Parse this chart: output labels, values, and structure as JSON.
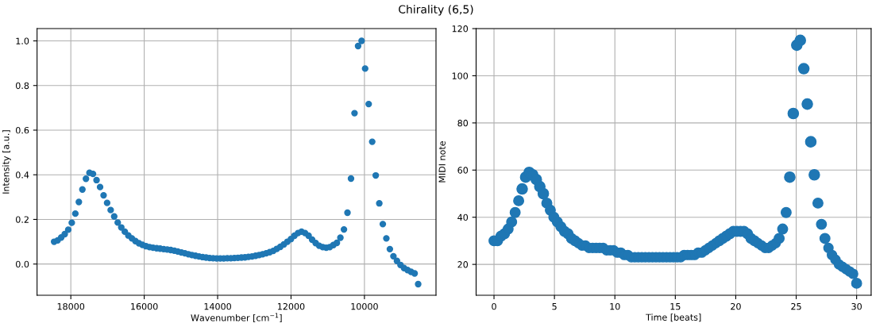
{
  "chart_data": [
    {
      "type": "scatter",
      "title": "Chirality (6,5)",
      "xlabel": "Wavenumber [cm$^{−1}$]",
      "ylabel": "Intensity [a.u.]",
      "grid": true,
      "marker": "circle",
      "xlim": [
        18920,
        8050
      ],
      "xticks": [
        18000,
        16000,
        14000,
        12000,
        10000
      ],
      "ylim": [
        -0.14,
        1.055
      ],
      "yticks": [
        {
          "value": 0,
          "label": "0.0"
        },
        {
          "value": 0.2,
          "label": "0.2"
        },
        {
          "value": 0.4,
          "label": "0.4"
        },
        {
          "value": 0.6,
          "label": "0.6"
        },
        {
          "value": 0.8,
          "label": "0.8"
        },
        {
          "value": 1,
          "label": "1.0"
        }
      ],
      "series": [
        {
          "color": "#1f77b4",
          "x": [
            18455,
            18359,
            18262,
            18166,
            18070,
            17974,
            17877,
            17781,
            17685,
            17588,
            17492,
            17396,
            17299,
            17203,
            17107,
            17011,
            16914,
            16818,
            16722,
            16625,
            16529,
            16433,
            16336,
            16240,
            16144,
            16048,
            15951,
            15855,
            15759,
            15662,
            15566,
            15470,
            15373,
            15277,
            15181,
            15085,
            14988,
            14892,
            14796,
            14699,
            14603,
            14507,
            14410,
            14314,
            14218,
            14122,
            14025,
            13929,
            13833,
            13736,
            13640,
            13544,
            13447,
            13351,
            13255,
            13159,
            13062,
            12966,
            12870,
            12773,
            12677,
            12581,
            12484,
            12388,
            12292,
            12196,
            12099,
            12003,
            11907,
            11810,
            11714,
            11618,
            11521,
            11425,
            11329,
            11233,
            11136,
            11040,
            10944,
            10847,
            10751,
            10655,
            10558,
            10462,
            10366,
            10270,
            10173,
            10077,
            9981,
            9884,
            9788,
            9692,
            9595,
            9499,
            9403,
            9307,
            9210,
            9114,
            9018,
            8921,
            8825,
            8729,
            8632,
            8536
          ],
          "values": [
            0.1,
            0.106,
            0.119,
            0.134,
            0.154,
            0.185,
            0.226,
            0.278,
            0.334,
            0.382,
            0.409,
            0.404,
            0.376,
            0.345,
            0.308,
            0.274,
            0.242,
            0.213,
            0.186,
            0.164,
            0.145,
            0.128,
            0.115,
            0.103,
            0.093,
            0.086,
            0.08,
            0.076,
            0.073,
            0.071,
            0.069,
            0.067,
            0.065,
            0.063,
            0.06,
            0.056,
            0.052,
            0.048,
            0.044,
            0.04,
            0.037,
            0.034,
            0.031,
            0.029,
            0.027,
            0.026,
            0.025,
            0.025,
            0.025,
            0.026,
            0.026,
            0.027,
            0.028,
            0.029,
            0.03,
            0.032,
            0.034,
            0.037,
            0.04,
            0.044,
            0.048,
            0.053,
            0.059,
            0.068,
            0.077,
            0.088,
            0.1,
            0.112,
            0.127,
            0.139,
            0.145,
            0.139,
            0.127,
            0.109,
            0.094,
            0.082,
            0.076,
            0.073,
            0.076,
            0.085,
            0.095,
            0.118,
            0.155,
            0.23,
            0.383,
            0.676,
            0.977,
            1.0,
            0.876,
            0.717,
            0.548,
            0.397,
            0.272,
            0.179,
            0.115,
            0.067,
            0.035,
            0.014,
            -0.004,
            -0.018,
            -0.027,
            -0.035,
            -0.042,
            -0.09
          ]
        }
      ]
    },
    {
      "type": "bubble",
      "xlabel": "Time [beats]",
      "ylabel": "MIDI note",
      "grid": true,
      "marker": "circle",
      "xlim": [
        -1.48,
        31.2
      ],
      "xticks": [
        0,
        5,
        10,
        15,
        20,
        25,
        30
      ],
      "ylim": [
        6.9,
        120
      ],
      "yticks": [
        20,
        40,
        60,
        80,
        100,
        120
      ],
      "series": [
        {
          "color": "#1f77b4",
          "x": [
            0,
            0.29,
            0.58,
            0.87,
            1.17,
            1.46,
            1.75,
            2.04,
            2.33,
            2.62,
            2.91,
            3.2,
            3.5,
            3.79,
            4.08,
            4.37,
            4.66,
            4.95,
            5.24,
            5.53,
            5.83,
            6.12,
            6.41,
            6.7,
            6.99,
            7.28,
            7.57,
            7.86,
            8.16,
            8.45,
            8.74,
            9.03,
            9.32,
            9.61,
            9.9,
            10.2,
            10.49,
            10.78,
            11.07,
            11.36,
            11.65,
            11.94,
            12.23,
            12.52,
            12.82,
            13.11,
            13.4,
            13.69,
            13.98,
            14.27,
            14.56,
            14.85,
            15.15,
            15.44,
            15.73,
            16.02,
            16.31,
            16.6,
            16.89,
            17.19,
            17.48,
            17.77,
            18.06,
            18.35,
            18.64,
            18.93,
            19.22,
            19.51,
            19.81,
            20.1,
            20.39,
            20.68,
            20.97,
            21.26,
            21.55,
            21.84,
            22.14,
            22.43,
            22.72,
            23.01,
            23.3,
            23.59,
            23.88,
            24.17,
            24.47,
            24.76,
            25.05,
            25.34,
            25.63,
            25.92,
            26.21,
            26.5,
            26.8,
            27.09,
            27.38,
            27.67,
            27.96,
            28.25,
            28.54,
            28.83,
            29.13,
            29.42,
            29.71,
            30.0
          ],
          "values": [
            30,
            30,
            32,
            33,
            35,
            38,
            42,
            47,
            52,
            57,
            59,
            58,
            56,
            53,
            50,
            46,
            43,
            40,
            38,
            36,
            34,
            33,
            31,
            30,
            29,
            28,
            28,
            27,
            27,
            27,
            27,
            27,
            26,
            26,
            26,
            25,
            25,
            24,
            24,
            23,
            23,
            23,
            23,
            23,
            23,
            23,
            23,
            23,
            23,
            23,
            23,
            23,
            23,
            23,
            24,
            24,
            24,
            24,
            25,
            25,
            26,
            27,
            28,
            29,
            30,
            31,
            32,
            33,
            34,
            34,
            34,
            34,
            33,
            31,
            30,
            29,
            28,
            27,
            27,
            28,
            29,
            31,
            35,
            42,
            57,
            84,
            113,
            115,
            103,
            88,
            72,
            58,
            46,
            37,
            31,
            27,
            24,
            22,
            20,
            19,
            18,
            17,
            16,
            12
          ],
          "sizes": [
            0.9,
            0.9,
            0.9,
            0.9,
            0.9,
            0.9,
            0.9,
            0.9,
            1,
            1,
            1,
            1,
            1,
            1,
            1,
            0.9,
            0.9,
            0.9,
            0.9,
            0.9,
            0.9,
            0.9,
            0.9,
            0.9,
            0.8,
            0.8,
            0.8,
            0.8,
            0.8,
            0.8,
            0.8,
            0.8,
            0.8,
            0.8,
            0.8,
            0.8,
            0.8,
            0.8,
            0.8,
            0.8,
            0.8,
            0.8,
            0.8,
            0.8,
            0.8,
            0.8,
            0.8,
            0.8,
            0.8,
            0.8,
            0.8,
            0.8,
            0.8,
            0.8,
            0.8,
            0.8,
            0.8,
            0.8,
            0.8,
            0.8,
            0.8,
            0.8,
            0.8,
            0.8,
            0.9,
            0.9,
            0.9,
            0.9,
            0.9,
            0.9,
            0.9,
            0.9,
            0.9,
            0.9,
            0.9,
            0.8,
            0.8,
            0.8,
            0.8,
            0.8,
            0.8,
            0.9,
            0.9,
            0.9,
            1,
            1,
            1,
            1,
            1,
            1,
            1,
            1,
            0.9,
            0.9,
            0.9,
            0.8,
            0.8,
            0.8,
            0.8,
            0.8,
            0.8,
            0.8,
            0.8,
            0.9
          ]
        }
      ]
    }
  ]
}
